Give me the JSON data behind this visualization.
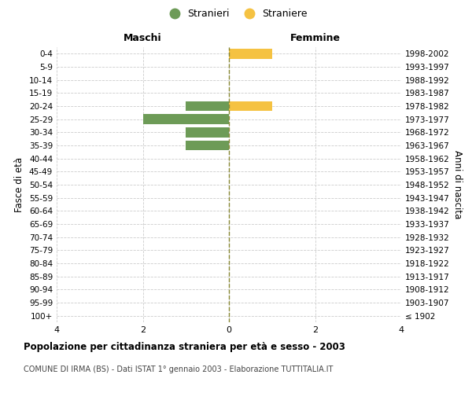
{
  "age_groups": [
    "100+",
    "95-99",
    "90-94",
    "85-89",
    "80-84",
    "75-79",
    "70-74",
    "65-69",
    "60-64",
    "55-59",
    "50-54",
    "45-49",
    "40-44",
    "35-39",
    "30-34",
    "25-29",
    "20-24",
    "15-19",
    "10-14",
    "5-9",
    "0-4"
  ],
  "birth_years": [
    "≤ 1902",
    "1903-1907",
    "1908-1912",
    "1913-1917",
    "1918-1922",
    "1923-1927",
    "1928-1932",
    "1933-1937",
    "1938-1942",
    "1943-1947",
    "1948-1952",
    "1953-1957",
    "1958-1962",
    "1963-1967",
    "1968-1972",
    "1973-1977",
    "1978-1982",
    "1983-1987",
    "1988-1992",
    "1993-1997",
    "1998-2002"
  ],
  "maschi": [
    0,
    0,
    0,
    0,
    0,
    0,
    0,
    0,
    0,
    0,
    0,
    0,
    0,
    1,
    1,
    2,
    1,
    0,
    0,
    0,
    0
  ],
  "femmine": [
    0,
    0,
    0,
    0,
    0,
    0,
    0,
    0,
    0,
    0,
    0,
    0,
    0,
    0,
    0,
    0,
    1,
    0,
    0,
    0,
    1
  ],
  "xlim": 4,
  "color_maschi": "#6d9b57",
  "color_femmine": "#f5c242",
  "title": "Popolazione per cittadinanza straniera per età e sesso - 2003",
  "subtitle": "COMUNE DI IRMA (BS) - Dati ISTAT 1° gennaio 2003 - Elaborazione TUTTITALIA.IT",
  "ylabel_left": "Fasce di età",
  "ylabel_right": "Anni di nascita",
  "legend_maschi": "Stranieri",
  "legend_femmine": "Straniere",
  "label_maschi": "Maschi",
  "label_femmine": "Femmine",
  "grid_color": "#cccccc",
  "background_color": "#ffffff",
  "bar_height": 0.75
}
